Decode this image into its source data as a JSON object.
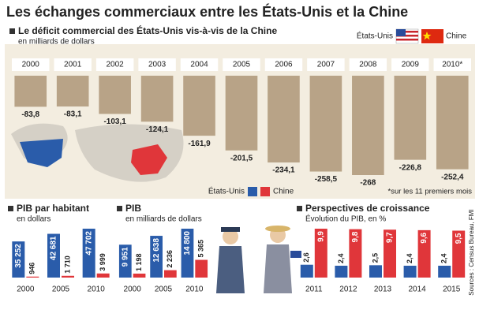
{
  "title": "Les échanges commerciaux entre les États-Unis et la Chine",
  "source": "Sources : Census Bureau, FMI",
  "chart_data": [
    {
      "type": "bar",
      "title": "Le déficit commercial des États-Unis vis-à-vis de la Chine",
      "subtitle": "en milliards de dollars",
      "note": "*sur les 11 premiers mois",
      "categories": [
        "2000",
        "2001",
        "2002",
        "2003",
        "2004",
        "2005",
        "2006",
        "2007",
        "2008",
        "2009",
        "2010*"
      ],
      "values": [
        -83.8,
        -83.1,
        -103.1,
        -124.1,
        -161.9,
        -201.5,
        -234.1,
        -258.5,
        -268,
        -226.8,
        -252.4
      ],
      "value_labels": [
        "-83,8",
        "-83,1",
        "-103,1",
        "-124,1",
        "-161,9",
        "-201,5",
        "-234,1",
        "-258,5",
        "-268",
        "-226,8",
        "-252,4"
      ],
      "color": "#b8a387"
    },
    {
      "type": "bar",
      "title": "PIB par habitant",
      "subtitle": "en dollars",
      "categories": [
        "2000",
        "2005",
        "2010"
      ],
      "series": [
        {
          "name": "États-Unis",
          "color": "#2a5caa",
          "values": [
            35252,
            42681,
            47702
          ],
          "value_labels": [
            "35 252",
            "42 681",
            "47 702"
          ]
        },
        {
          "name": "Chine",
          "color": "#e0363a",
          "values": [
            946,
            1710,
            3999
          ],
          "value_labels": [
            "946",
            "1 710",
            "3 999"
          ]
        }
      ]
    },
    {
      "type": "bar",
      "title": "PIB",
      "subtitle": "en milliards de dollars",
      "categories": [
        "2000",
        "2005",
        "2010"
      ],
      "series": [
        {
          "name": "États-Unis",
          "color": "#2a5caa",
          "values": [
            9951,
            12638,
            14800
          ],
          "value_labels": [
            "9 951",
            "12 638",
            "14 800"
          ]
        },
        {
          "name": "Chine",
          "color": "#e0363a",
          "values": [
            1198,
            2236,
            5365
          ],
          "value_labels": [
            "1 198",
            "2 236",
            "5 365"
          ]
        }
      ]
    },
    {
      "type": "bar",
      "title": "Perspectives de croissance",
      "subtitle": "Évolution du PIB, en %",
      "categories": [
        "2011",
        "2012",
        "2013",
        "2014",
        "2015"
      ],
      "series": [
        {
          "name": "États-Unis",
          "color": "#2a5caa",
          "values": [
            2.6,
            2.4,
            2.5,
            2.4,
            2.4
          ],
          "value_labels": [
            "2,6",
            "2,4",
            "2,5",
            "2,4",
            "2,4"
          ]
        },
        {
          "name": "Chine",
          "color": "#e0363a",
          "values": [
            9.9,
            9.8,
            9.7,
            9.6,
            9.5
          ],
          "value_labels": [
            "9,9",
            "9,8",
            "9,7",
            "9,6",
            "9,5"
          ]
        }
      ]
    }
  ]
}
